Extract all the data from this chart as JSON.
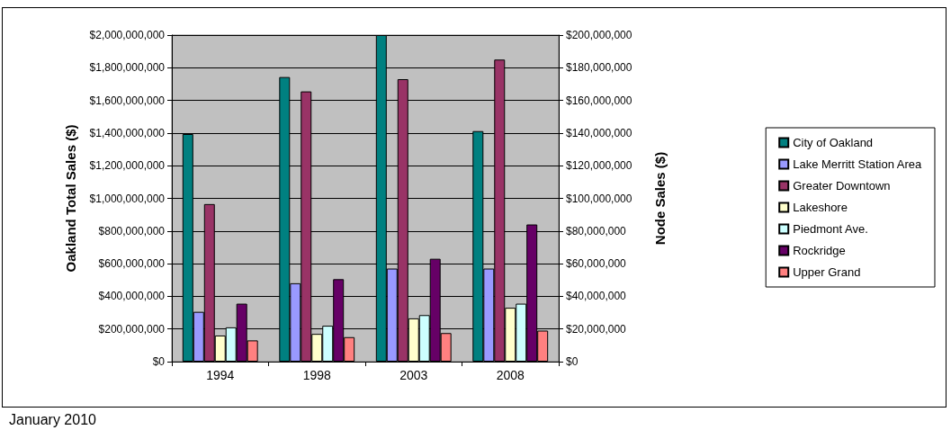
{
  "chart_data": {
    "type": "bar",
    "ylabel": "Oakland Total Sales ($)",
    "y2label": "Node Sales ($)",
    "categories": [
      "1994",
      "1998",
      "2003",
      "2008"
    ],
    "series": [
      {
        "name": "City of Oakland",
        "color": "#008080",
        "values": [
          1394000000,
          1743000000,
          2000000000,
          1412000000
        ]
      },
      {
        "name": "Lake Merritt Station Area",
        "color": "#9999ff",
        "axis": "y2",
        "values": [
          30500000,
          48000000,
          57000000,
          57000000
        ]
      },
      {
        "name": "Greater Downtown",
        "color": "#993366",
        "axis": "y2",
        "values": [
          96500000,
          165500000,
          173000000,
          185000000
        ]
      },
      {
        "name": "Lakeshore",
        "color": "#ffffcc",
        "axis": "y2",
        "values": [
          16000000,
          17000000,
          26500000,
          33000000
        ]
      },
      {
        "name": "Piedmont Ave.",
        "color": "#ccffff",
        "axis": "y2",
        "values": [
          21000000,
          22000000,
          28500000,
          35500000
        ]
      },
      {
        "name": "Rockridge",
        "color": "#660066",
        "axis": "y2",
        "values": [
          35500000,
          50500000,
          63000000,
          84000000
        ]
      },
      {
        "name": "Upper Grand",
        "color": "#ff8080",
        "axis": "y2",
        "values": [
          13000000,
          15000000,
          17500000,
          19000000
        ]
      }
    ],
    "ylim": [
      0,
      2000000000
    ],
    "yticks": [
      {
        "value": 0,
        "label": "$0"
      },
      {
        "value": 200000000,
        "label": "$200,000,000"
      },
      {
        "value": 400000000,
        "label": "$400,000,000"
      },
      {
        "value": 600000000,
        "label": "$600,000,000"
      },
      {
        "value": 800000000,
        "label": "$800,000,000"
      },
      {
        "value": 1000000000,
        "label": "$1,000,000,000"
      },
      {
        "value": 1200000000,
        "label": "$1,200,000,000"
      },
      {
        "value": 1400000000,
        "label": "$1,400,000,000"
      },
      {
        "value": 1600000000,
        "label": "$1,600,000,000"
      },
      {
        "value": 1800000000,
        "label": "$1,800,000,000"
      },
      {
        "value": 2000000000,
        "label": "$2,000,000,000"
      }
    ],
    "y2lim": [
      0,
      200000000
    ],
    "y2ticks": [
      {
        "value": 0,
        "label": "$0"
      },
      {
        "value": 20000000,
        "label": "$20,000,000"
      },
      {
        "value": 40000000,
        "label": "$40,000,000"
      },
      {
        "value": 60000000,
        "label": "$60,000,000"
      },
      {
        "value": 80000000,
        "label": "$80,000,000"
      },
      {
        "value": 100000000,
        "label": "$100,000,000"
      },
      {
        "value": 120000000,
        "label": "$120,000,000"
      },
      {
        "value": 140000000,
        "label": "$140,000,000"
      },
      {
        "value": 160000000,
        "label": "$160,000,000"
      },
      {
        "value": 180000000,
        "label": "$180,000,000"
      },
      {
        "value": 200000000,
        "label": "$200,000,000"
      }
    ],
    "grid": "y",
    "legend": "right",
    "annotations": [
      "January 2010"
    ]
  }
}
